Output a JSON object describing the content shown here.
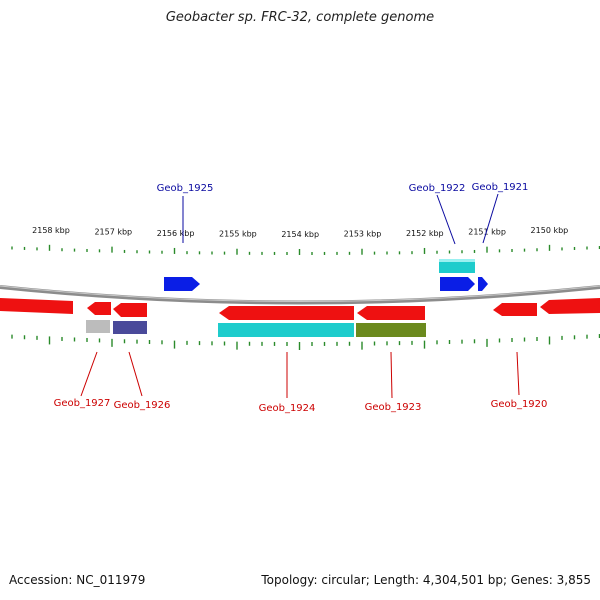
{
  "title": "Geobacter sp. FRC-32, complete genome",
  "footer": {
    "accession": "Accession: NC_011979",
    "summary": "Topology: circular; Length: 4,304,501 bp; Genes: 3,855"
  },
  "colors": {
    "forward_label": "#0a0aa0",
    "reverse_label": "#cc0000",
    "tick": "#2a8a2a",
    "backbone": "#8c8c8c",
    "gene_red": "#ee1111",
    "gene_blue": "#0a1ee6",
    "feature_cyan": "#1ecccc",
    "feature_olive": "#6b8a1e",
    "feature_grey": "#bcbcbc",
    "feature_navy": "#4a4a9a"
  },
  "scale": {
    "unit": "kbp",
    "labels": [
      "2158 kbp",
      "2157 kbp",
      "2156 kbp",
      "2155 kbp",
      "2154 kbp",
      "2153 kbp",
      "2152 kbp",
      "2151 kbp",
      "2150 kbp"
    ]
  },
  "genes": [
    {
      "label": "Geob_1925",
      "strand": "forward"
    },
    {
      "label": "Geob_1922",
      "strand": "forward"
    },
    {
      "label": "Geob_1921",
      "strand": "forward"
    },
    {
      "label": "Geob_1927",
      "strand": "reverse"
    },
    {
      "label": "Geob_1926",
      "strand": "reverse"
    },
    {
      "label": "Geob_1924",
      "strand": "reverse"
    },
    {
      "label": "Geob_1923",
      "strand": "reverse"
    },
    {
      "label": "Geob_1920",
      "strand": "reverse"
    }
  ]
}
